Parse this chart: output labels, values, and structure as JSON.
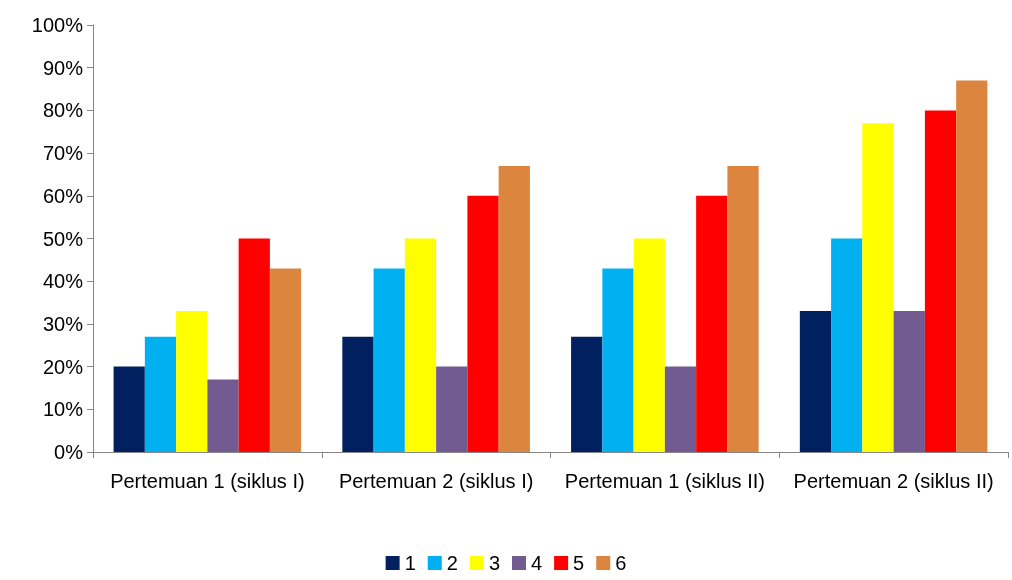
{
  "chart_data": {
    "type": "bar",
    "categories": [
      "Pertemuan 1 (siklus I)",
      "Pertemuan 2 (siklus I)",
      "Pertemuan 1 (siklus II)",
      "Pertemuan 2 (siklus II)"
    ],
    "series": [
      {
        "name": "1",
        "color": "#002060",
        "values": [
          20,
          27,
          27,
          33
        ]
      },
      {
        "name": "2",
        "color": "#00b0f0",
        "values": [
          27,
          43,
          43,
          50
        ]
      },
      {
        "name": "3",
        "color": "#ffff00",
        "values": [
          33,
          50,
          50,
          77
        ]
      },
      {
        "name": "4",
        "color": "#725b91",
        "values": [
          17,
          20,
          20,
          33
        ]
      },
      {
        "name": "5",
        "color": "#ff0000",
        "values": [
          50,
          60,
          60,
          80
        ]
      },
      {
        "name": "6",
        "color": "#dc853f",
        "values": [
          43,
          67,
          67,
          87
        ]
      }
    ],
    "ylim": [
      0,
      100
    ],
    "yticks": [
      {
        "value": 0,
        "label": "0%"
      },
      {
        "value": 10,
        "label": "10%"
      },
      {
        "value": 20,
        "label": "20%"
      },
      {
        "value": 30,
        "label": "30%"
      },
      {
        "value": 40,
        "label": "40%"
      },
      {
        "value": 50,
        "label": "50%"
      },
      {
        "value": 60,
        "label": "60%"
      },
      {
        "value": 70,
        "label": "70%"
      },
      {
        "value": 80,
        "label": "80%"
      },
      {
        "value": 90,
        "label": "90%"
      },
      {
        "value": 100,
        "label": "100%"
      }
    ],
    "grid": false,
    "legend": "bottom"
  }
}
